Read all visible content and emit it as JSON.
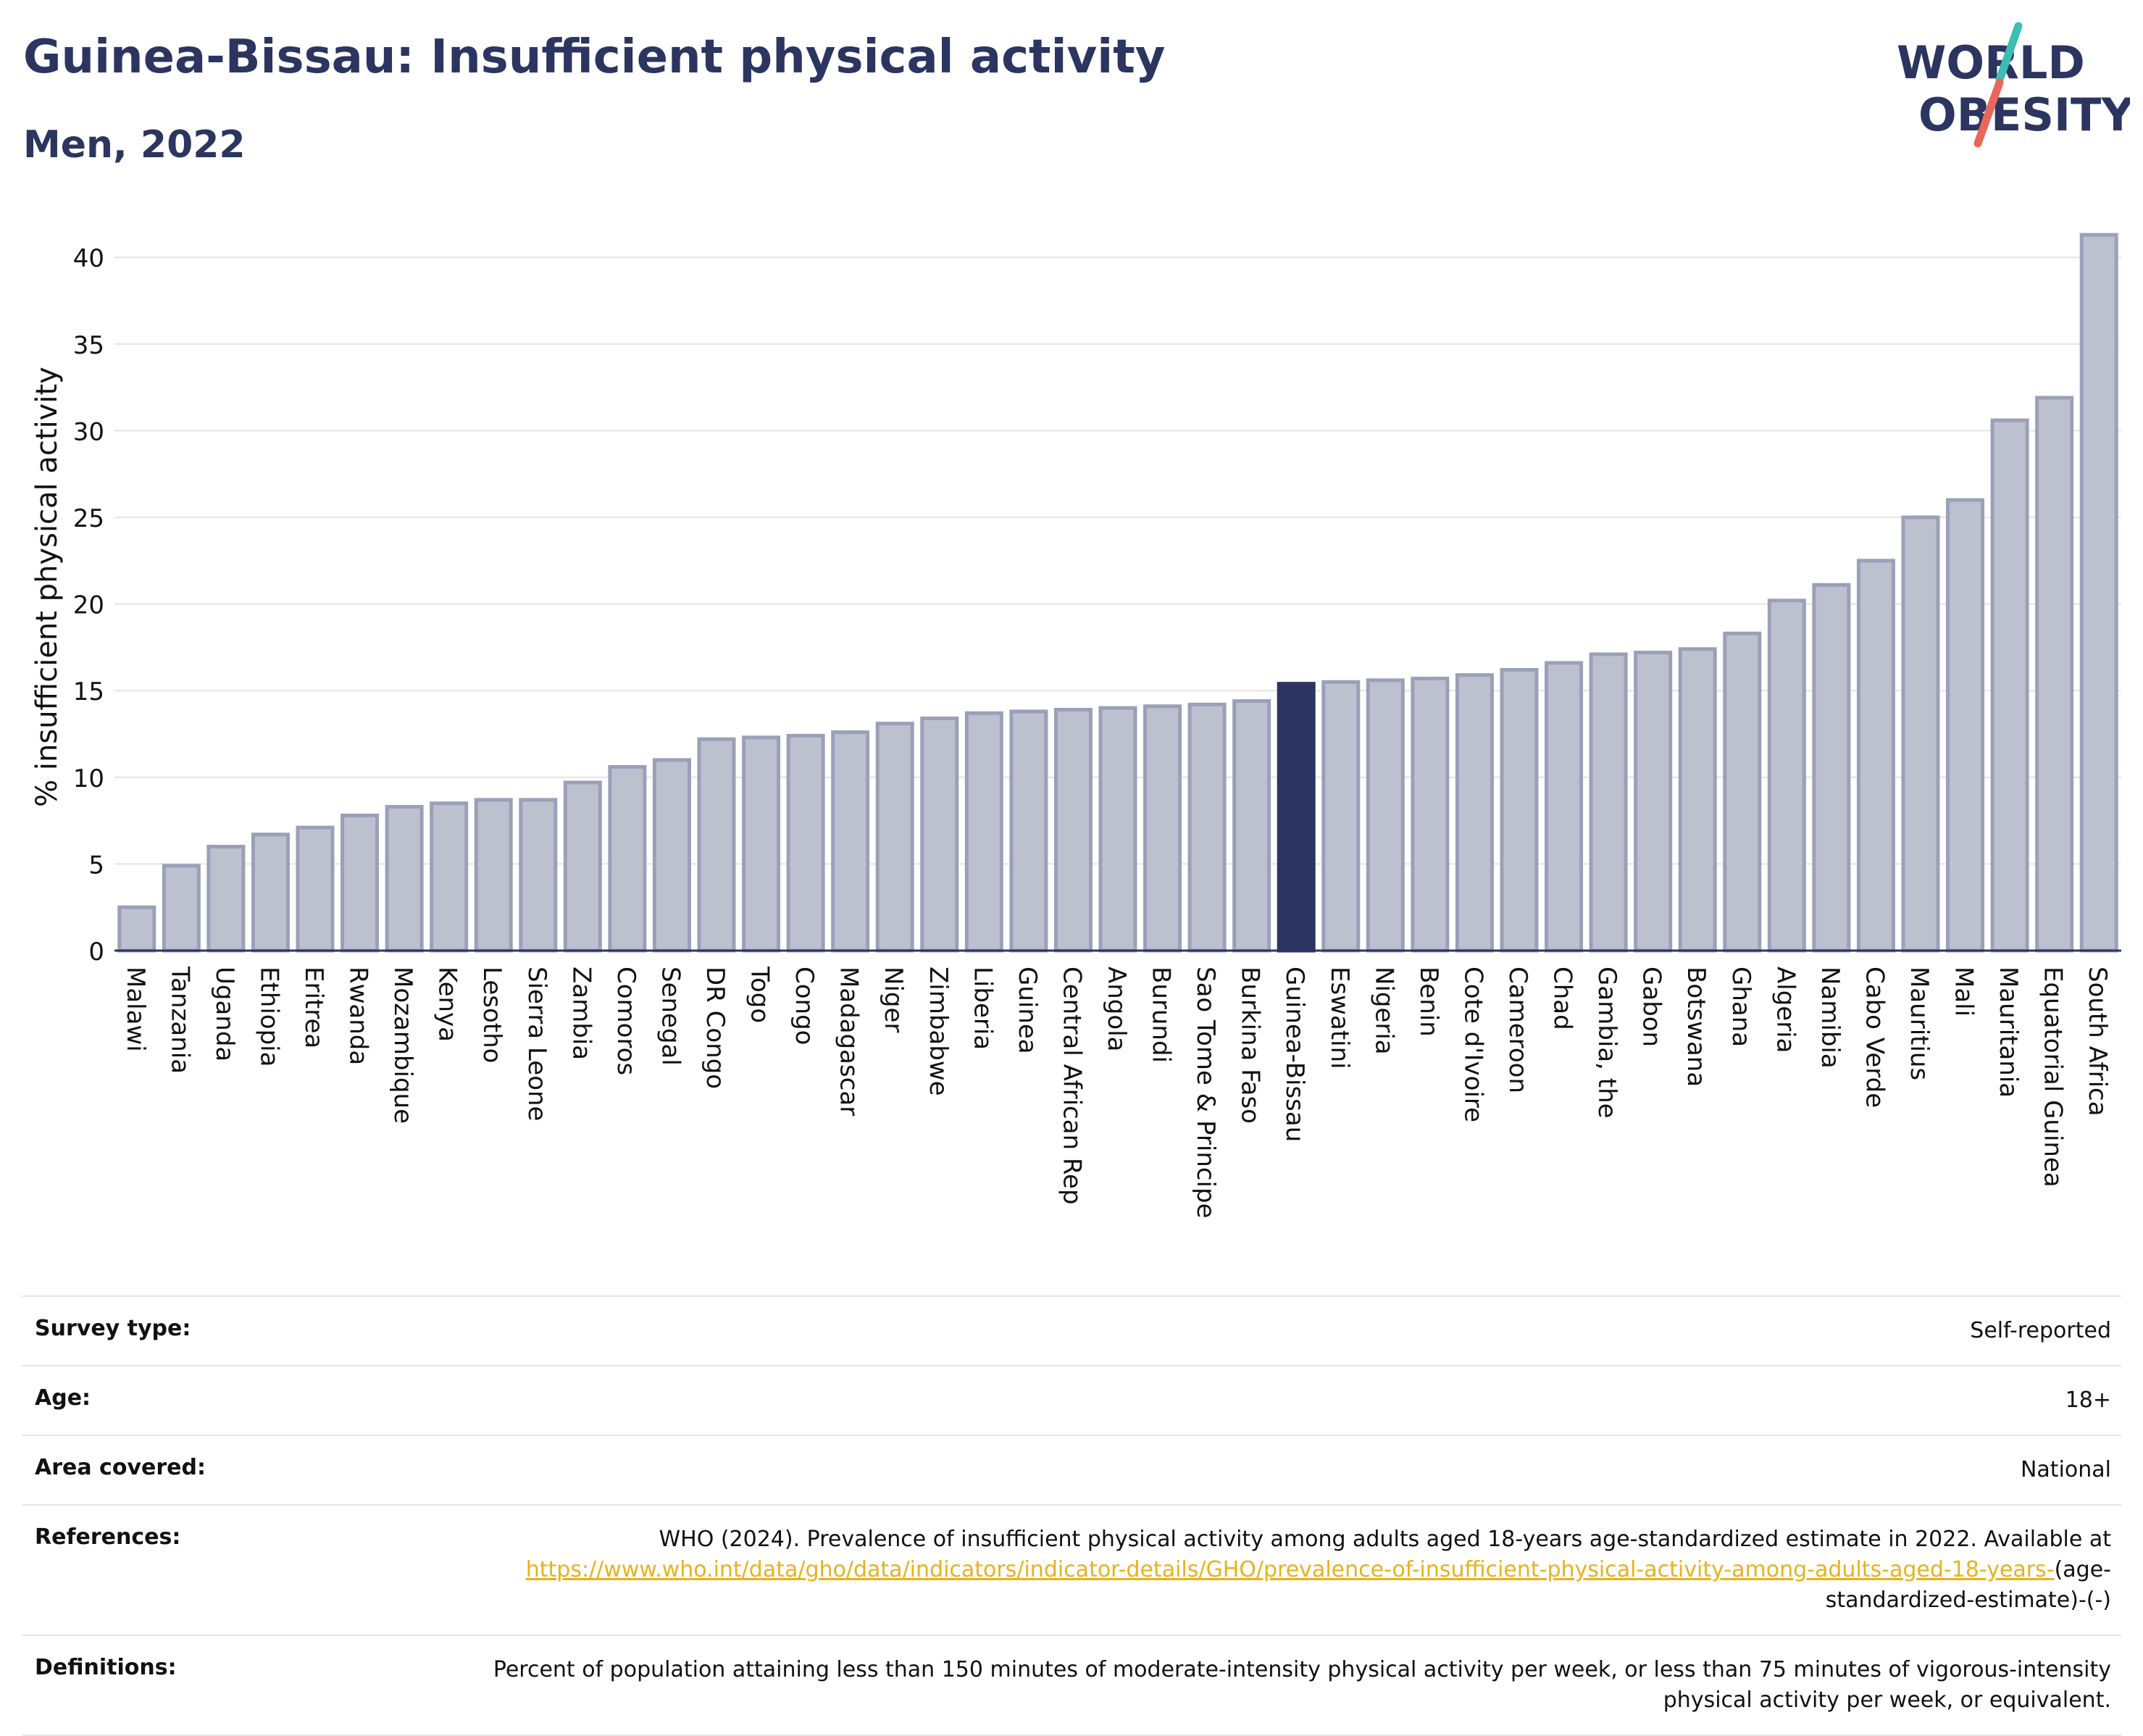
{
  "header": {
    "title": "Guinea-Bissau: Insufficient physical activity",
    "subtitle": "Men, 2022",
    "logo_line1": "WORLD",
    "logo_line2": "OBESITY"
  },
  "colors": {
    "bar": "#bcc0cf",
    "bar_stroke": "#9aa0b8",
    "highlight": "#2b3560",
    "title": "#2b3560",
    "link": "#e8b21a",
    "logo_teal": "#3dbdb4",
    "logo_red": "#e8675a"
  },
  "chart_data": {
    "type": "bar",
    "title": "Guinea-Bissau: Insufficient physical activity",
    "subtitle": "Men, 2022",
    "xlabel": "",
    "ylabel": "% insufficient physical activity",
    "ylim": [
      0,
      42
    ],
    "yticks": [
      0,
      5,
      10,
      15,
      20,
      25,
      30,
      35,
      40
    ],
    "grid": true,
    "highlight": "Guinea-Bissau",
    "categories": [
      "Malawi",
      "Tanzania",
      "Uganda",
      "Ethiopia",
      "Eritrea",
      "Rwanda",
      "Mozambique",
      "Kenya",
      "Lesotho",
      "Sierra Leone",
      "Zambia",
      "Comoros",
      "Senegal",
      "DR Congo",
      "Togo",
      "Congo",
      "Madagascar",
      "Niger",
      "Zimbabwe",
      "Liberia",
      "Guinea",
      "Central African Rep",
      "Angola",
      "Burundi",
      "Sao Tome & Principe",
      "Burkina Faso",
      "Guinea-Bissau",
      "Eswatini",
      "Nigeria",
      "Benin",
      "Cote d'Ivoire",
      "Cameroon",
      "Chad",
      "Gambia, the",
      "Gabon",
      "Botswana",
      "Ghana",
      "Algeria",
      "Namibia",
      "Cabo Verde",
      "Mauritius",
      "Mali",
      "Mauritania",
      "Equatorial Guinea",
      "South Africa"
    ],
    "values": [
      2.5,
      4.9,
      6.0,
      6.7,
      7.1,
      7.8,
      8.3,
      8.5,
      8.7,
      8.7,
      9.7,
      10.6,
      11.0,
      12.2,
      12.3,
      12.4,
      12.6,
      13.1,
      13.4,
      13.7,
      13.8,
      13.9,
      14.0,
      14.1,
      14.2,
      14.4,
      15.4,
      15.5,
      15.6,
      15.7,
      15.9,
      16.2,
      16.6,
      17.1,
      17.2,
      17.4,
      18.3,
      20.2,
      21.1,
      22.5,
      25.0,
      26.0,
      30.6,
      31.9,
      41.3
    ]
  },
  "info": {
    "rows": [
      {
        "label": "Survey type:",
        "value": "Self-reported"
      },
      {
        "label": "Age:",
        "value": "18+"
      },
      {
        "label": "Area covered:",
        "value": "National"
      }
    ],
    "references": {
      "label": "References:",
      "text": "WHO (2024). Prevalence of insufficient physical activity among adults aged 18-years age-standardized estimate in 2022. Available at",
      "link": "https://www.who.int/data/gho/data/indicators/indicator-details/GHO/prevalence-of-insufficient-physical-activity-among-adults-aged-18-years-",
      "suffix": "(age-standardized-estimate)-(-)"
    },
    "definitions": {
      "label": "Definitions:",
      "text": "Percent of population attaining less than 150 minutes of moderate-intensity physical activity per week, or less than 75 minutes of vigorous-intensity physical activity per week, or equivalent."
    }
  }
}
